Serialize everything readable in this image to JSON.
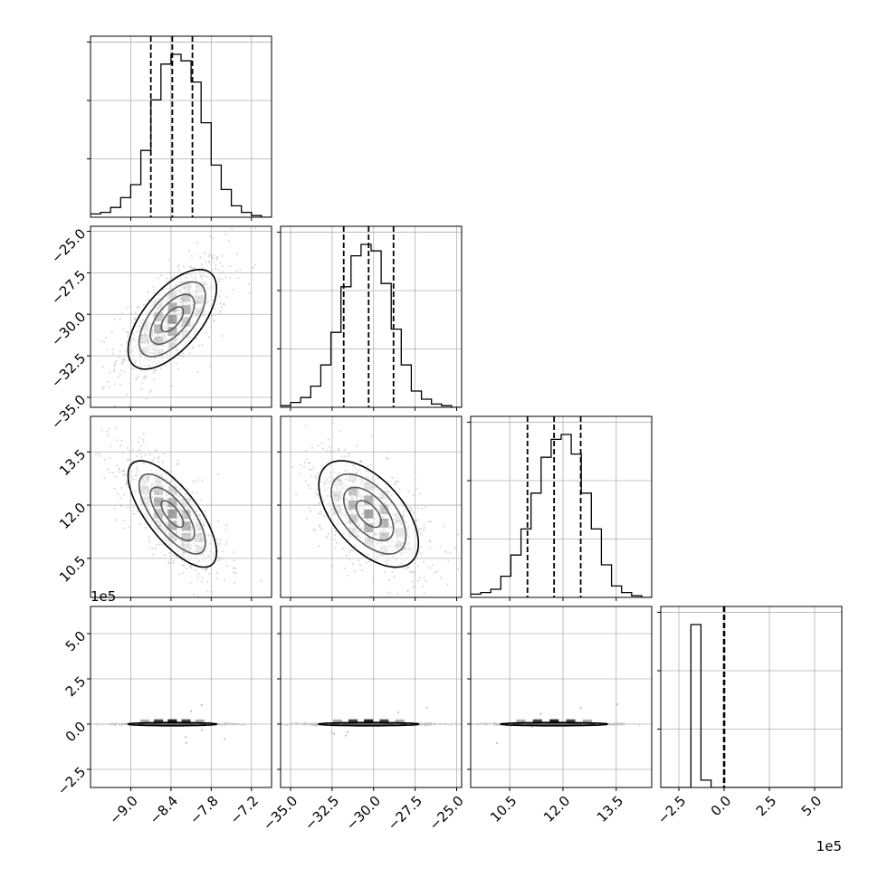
{
  "chart_data": {
    "type": "corner",
    "title": "",
    "parameters": [
      {
        "label": "",
        "range": [
          -9.6,
          -6.9
        ],
        "ticks": [
          -9.0,
          -8.4,
          -7.8,
          -7.2
        ],
        "tick_labels": [
          "−9.0",
          "−8.4",
          "−7.8",
          "−7.2"
        ],
        "quantiles": [
          -8.7,
          -8.38,
          -8.08
        ],
        "offset": ""
      },
      {
        "label": "",
        "range": [
          -35.6,
          -24.7
        ],
        "ticks": [
          -35.0,
          -32.5,
          -30.0,
          -27.5,
          -25.0
        ],
        "tick_labels": [
          "−35.0",
          "−32.5",
          "−30.0",
          "−27.5",
          "−25.0"
        ],
        "quantiles": [
          -31.8,
          -30.3,
          -28.8
        ],
        "offset": ""
      },
      {
        "label": "",
        "range": [
          9.4,
          14.5
        ],
        "ticks": [
          10.5,
          12.0,
          13.5
        ],
        "tick_labels": [
          "10.5",
          "12.0",
          "13.5"
        ],
        "quantiles": [
          11.0,
          11.75,
          12.5
        ],
        "offset": ""
      },
      {
        "label": "",
        "range": [
          -3.5,
          6.5
        ],
        "ticks": [
          -2.5,
          0.0,
          2.5,
          5.0
        ],
        "tick_labels": [
          "−2.5",
          "0.0",
          "2.5",
          "5.0"
        ],
        "quantiles": [
          -0.02,
          0.0,
          0.02
        ],
        "offset": "1e5"
      }
    ],
    "histograms": [
      [
        0.02,
        0.03,
        0.06,
        0.12,
        0.2,
        0.41,
        0.72,
        0.94,
        1.0,
        0.96,
        0.83,
        0.58,
        0.32,
        0.17,
        0.07,
        0.03,
        0.01,
        0.0
      ],
      [
        0.01,
        0.03,
        0.06,
        0.13,
        0.26,
        0.46,
        0.74,
        0.93,
        1.0,
        0.96,
        0.76,
        0.48,
        0.26,
        0.1,
        0.05,
        0.02,
        0.01,
        0.0
      ],
      [
        0.02,
        0.03,
        0.05,
        0.13,
        0.26,
        0.42,
        0.64,
        0.86,
        0.97,
        1.0,
        0.88,
        0.64,
        0.42,
        0.2,
        0.07,
        0.03,
        0.01,
        0.0
      ],
      [
        0.0,
        0.0,
        0.0,
        1.0,
        0.045,
        0.0,
        0.0,
        0.0,
        0.0,
        0.0,
        0.0,
        0.0,
        0.0,
        0.0,
        0.0,
        0.0,
        0.0,
        0.0
      ]
    ],
    "correlations": [
      [
        1.0,
        0.62,
        -0.72,
        0.0
      ],
      [
        0.62,
        1.0,
        -0.55,
        0.0
      ],
      [
        -0.72,
        -0.55,
        1.0,
        0.0
      ],
      [
        0.0,
        0.0,
        0.0,
        1.0
      ]
    ],
    "centers": [
      -8.38,
      -30.3,
      11.75,
      0.0
    ],
    "sigmas": [
      0.33,
      1.5,
      0.75,
      0.12
    ],
    "grid": true,
    "contour_levels": 3,
    "colors": {
      "line": "#000000",
      "grid": "#b0b0b0",
      "points": "#bdbdbd",
      "shade": "#000000"
    }
  }
}
